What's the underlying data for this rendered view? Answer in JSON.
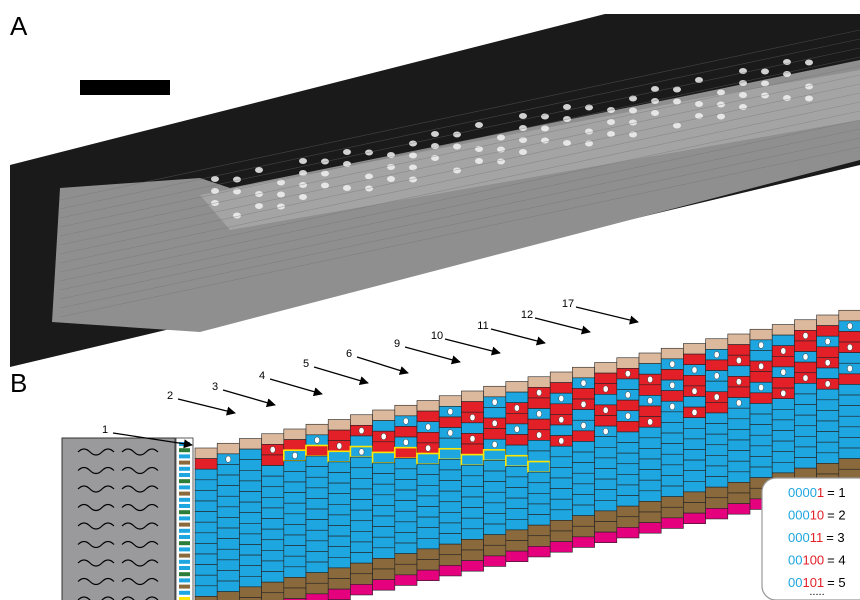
{
  "panel_a": {
    "label": "A"
  },
  "panel_b": {
    "label": "B",
    "arrows": [
      "1",
      "2",
      "3",
      "4",
      "5",
      "6",
      "9",
      "10",
      "11",
      "12",
      "17"
    ],
    "legend": [
      {
        "prefix": "0000",
        "bits": "1",
        "result": "= 1"
      },
      {
        "prefix": "000",
        "bits": "10",
        "result": "= 2"
      },
      {
        "prefix": "000",
        "bits": "11",
        "result": "= 3"
      },
      {
        "prefix": "00",
        "bits": "100",
        "result": "= 4"
      },
      {
        "prefix": "00",
        "bits": "101",
        "result": "= 5"
      }
    ],
    "legend_more": "....."
  }
}
